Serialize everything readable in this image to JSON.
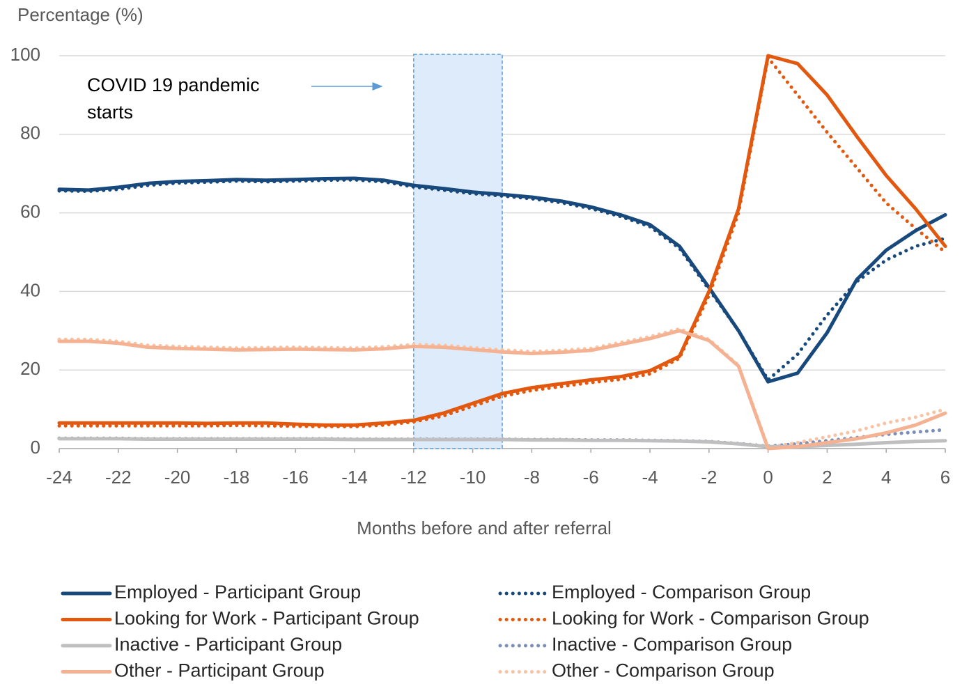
{
  "chart_data": {
    "type": "line",
    "y_label": "Percentage (%)",
    "x_label": "Months before and after referral",
    "annotation": [
      "COVID 19 pandemic",
      "starts"
    ],
    "shaded_region": [
      -12,
      -9
    ],
    "xlim": [
      -24,
      6
    ],
    "xticks": [
      -24,
      -22,
      -20,
      -18,
      -16,
      -14,
      -12,
      -10,
      -8,
      -6,
      -4,
      -2,
      0,
      2,
      4,
      6
    ],
    "ylim": [
      0,
      100
    ],
    "yticks": [
      0,
      20,
      40,
      60,
      80,
      100
    ],
    "grid": true,
    "x": [
      -24,
      -23,
      -22,
      -21,
      -20,
      -19,
      -18,
      -17,
      -16,
      -15,
      -14,
      -13,
      -12,
      -11,
      -10,
      -9,
      -8,
      -7,
      -6,
      -5,
      -4,
      -3,
      -2,
      -1,
      0,
      1,
      2,
      3,
      4,
      5,
      6
    ],
    "series": [
      {
        "name": "Employed - Participant Group",
        "color": "#17497c",
        "dash": "solid",
        "values": [
          66,
          65.8,
          66.5,
          67.5,
          68,
          68.2,
          68.5,
          68.3,
          68.5,
          68.7,
          68.8,
          68.3,
          67,
          66.2,
          65.3,
          64.7,
          64,
          63,
          61.5,
          59.5,
          57,
          51.5,
          41,
          30,
          17,
          19.2,
          29.5,
          43,
          50.5,
          55.5,
          59.5
        ]
      },
      {
        "name": "Looking for Work - Participant Group",
        "color": "#e2580f",
        "dash": "solid",
        "values": [
          6.5,
          6.5,
          6.5,
          6.5,
          6.5,
          6.4,
          6.5,
          6.5,
          6.2,
          6,
          6,
          6.5,
          7.2,
          9,
          11.5,
          14,
          15.5,
          16.5,
          17.5,
          18.3,
          19.8,
          23.5,
          40,
          61,
          100,
          98,
          90,
          79.5,
          69.5,
          61,
          51.5
        ]
      },
      {
        "name": "Inactive - Participant Group",
        "color": "#bfbfbf",
        "dash": "solid",
        "values": [
          2.5,
          2.5,
          2.5,
          2.4,
          2.4,
          2.4,
          2.4,
          2.4,
          2.4,
          2.4,
          2.3,
          2.3,
          2.3,
          2.3,
          2.3,
          2.3,
          2.2,
          2.2,
          2.1,
          2.1,
          2,
          1.9,
          1.7,
          1.2,
          0.5,
          0.5,
          0.8,
          1.1,
          1.5,
          1.8,
          2
        ]
      },
      {
        "name": "Other - Participant Group",
        "color": "#f4b293",
        "dash": "solid",
        "values": [
          27.3,
          27.3,
          26.8,
          25.8,
          25.5,
          25.3,
          25.1,
          25.2,
          25.3,
          25.2,
          25.1,
          25.4,
          26,
          25.8,
          25.2,
          24.6,
          24.2,
          24.5,
          25,
          26.5,
          28,
          30,
          27.5,
          21,
          0,
          0.5,
          1.5,
          2.5,
          4,
          6,
          9
        ]
      },
      {
        "name": "Employed - Comparison Group",
        "color": "#17497c",
        "dash": "dotted",
        "values": [
          65.6,
          65.5,
          66,
          67,
          67.6,
          67.8,
          68.1,
          67.9,
          68.1,
          68.3,
          68.4,
          67.9,
          66.6,
          65.8,
          64.9,
          64.3,
          63.6,
          62.6,
          61.1,
          59.1,
          56.5,
          51,
          40.5,
          30,
          17.5,
          24,
          34,
          42.5,
          48,
          51.5,
          53.5
        ]
      },
      {
        "name": "Looking for Work - Comparison Group",
        "color": "#e2580f",
        "dash": "dotted",
        "values": [
          5.8,
          5.8,
          5.8,
          5.8,
          5.8,
          5.8,
          5.9,
          5.8,
          5.7,
          5.6,
          5.6,
          6,
          6.8,
          8.3,
          10.8,
          13.3,
          14.8,
          15.8,
          16.8,
          17.6,
          19,
          23,
          39,
          60,
          99.5,
          90,
          80.5,
          71.5,
          62.5,
          56,
          50
        ]
      },
      {
        "name": "Inactive - Comparison Group",
        "color": "#7b8fb8",
        "dash": "dotted",
        "values": [
          2.6,
          2.6,
          2.6,
          2.5,
          2.5,
          2.5,
          2.5,
          2.5,
          2.5,
          2.5,
          2.4,
          2.4,
          2.4,
          2.4,
          2.4,
          2.4,
          2.3,
          2.3,
          2.2,
          2.2,
          2.1,
          2,
          1.8,
          1.3,
          0.6,
          1.2,
          2,
          2.8,
          3.6,
          4.2,
          4.8
        ]
      },
      {
        "name": "Other - Comparison Group",
        "color": "#f8c3a4",
        "dash": "dotted",
        "values": [
          27.8,
          27.8,
          27.3,
          26.3,
          26,
          25.8,
          25.6,
          25.7,
          25.8,
          25.7,
          25.6,
          25.9,
          26.5,
          26.3,
          25.7,
          25.1,
          24.7,
          25,
          25.5,
          27,
          28.5,
          30.5,
          27.8,
          21.2,
          0.3,
          1.5,
          3,
          4.5,
          6.5,
          8,
          10
        ]
      }
    ]
  }
}
